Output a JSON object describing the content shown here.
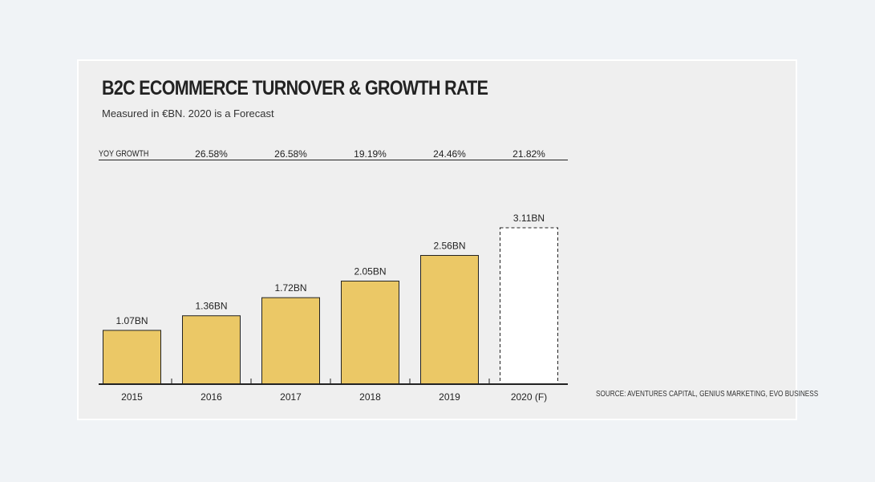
{
  "chart_data": {
    "type": "bar",
    "title": "B2C ECOMMERCE TURNOVER & GROWTH RATE",
    "subtitle": "Measured in €BN. 2020 is a Forecast",
    "categories": [
      "2015",
      "2016",
      "2017",
      "2018",
      "2019",
      "2020 (F)"
    ],
    "values": [
      1.07,
      1.36,
      1.72,
      2.05,
      2.56,
      3.11
    ],
    "value_labels": [
      "1.07BN",
      "1.36BN",
      "1.72BN",
      "2.05BN",
      "2.56BN",
      "3.11BN"
    ],
    "forecast": [
      false,
      false,
      false,
      false,
      false,
      true
    ],
    "growth_label": "YOY GROWTH",
    "growth_rates": [
      "26.58%",
      "26.58%",
      "19.19%",
      "24.46%",
      "21.82%"
    ],
    "source": "SOURCE: AVENTURES CAPITAL, GENIUS MARKETING, EVO BUSINESS",
    "xlabel": "",
    "ylabel": "",
    "grid": false,
    "legend": "none"
  },
  "colors": {
    "bar_fill": "#ebc866",
    "forecast_fill": "#ffffff",
    "outline": "#222222",
    "card": "#efefef",
    "page": "#f0f3f6"
  }
}
